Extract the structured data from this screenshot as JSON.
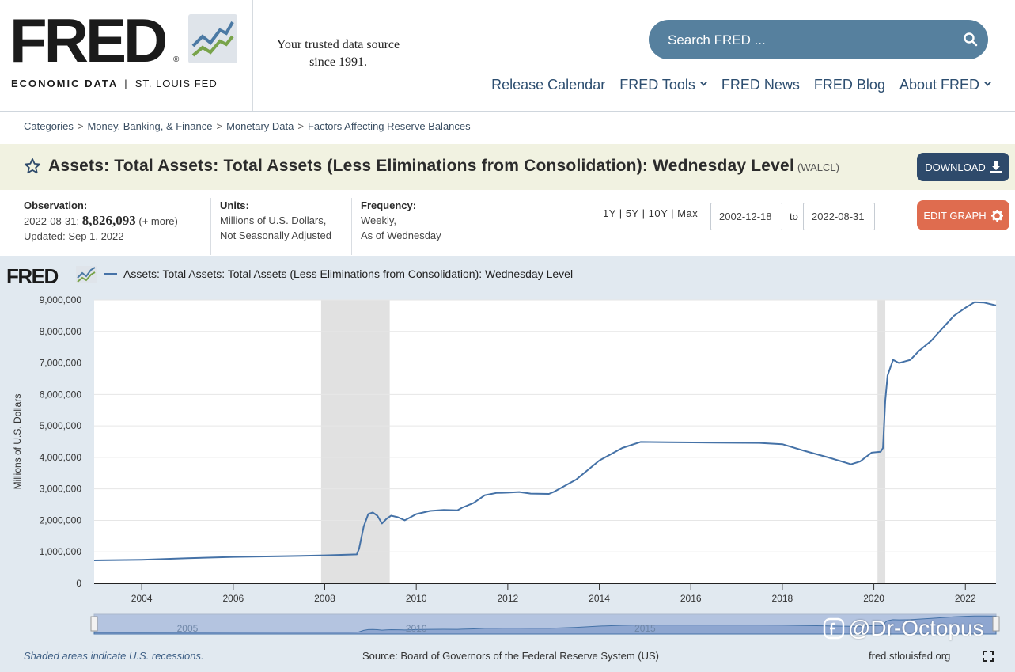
{
  "header": {
    "logo_text": "FRED",
    "logo_reg": "®",
    "logo_sub_left": "ECONOMIC DATA",
    "logo_sub_sep": "|",
    "logo_sub_right": "ST. LOUIS FED",
    "tagline_1": "Your trusted data source",
    "tagline_2": "since 1991.",
    "search_placeholder": "Search FRED ...",
    "nav": {
      "release_calendar": "Release Calendar",
      "fred_tools": "FRED Tools",
      "fred_news": "FRED News",
      "fred_blog": "FRED Blog",
      "about_fred": "About FRED"
    }
  },
  "breadcrumb": {
    "items": [
      "Categories",
      "Money, Banking, & Finance",
      "Monetary Data",
      "Factors Affecting Reserve Balances"
    ],
    "separator": ">"
  },
  "series": {
    "title": "Assets: Total Assets: Total Assets (Less Eliminations from Consolidation): Wednesday Level",
    "id": "(WALCL)",
    "download_label": "DOWNLOAD",
    "edit_label": "EDIT GRAPH"
  },
  "meta": {
    "observation_label": "Observation:",
    "observation_date": "2022-08-31:",
    "observation_value": "8,826,093",
    "observation_more": "(+ more)",
    "updated": "Updated: Sep 1, 2022",
    "units_label": "Units:",
    "units_1": "Millions of U.S. Dollars,",
    "units_2": "Not Seasonally Adjusted",
    "frequency_label": "Frequency:",
    "frequency_1": "Weekly,",
    "frequency_2": "As of Wednesday",
    "ranges": [
      "1Y",
      "5Y",
      "10Y",
      "Max"
    ],
    "range_sep": "|",
    "date_from": "2002-12-18",
    "date_to_label": "to",
    "date_to": "2022-08-31"
  },
  "graph": {
    "logo_text": "FRED",
    "recession_note": "Shaded areas indicate U.S. recessions.",
    "source_note": "Source: Board of Governors of the Federal Reserve System (US)",
    "fred_url": "fred.stlouisfed.org",
    "watermark": "@Dr-Octopus"
  },
  "chart_data": {
    "type": "line",
    "ylabel": "Millions of U.S. Dollars",
    "xlim": [
      2002.96,
      2022.67
    ],
    "ylim": [
      0,
      9000000
    ],
    "yticks": [
      0,
      1000000,
      2000000,
      3000000,
      4000000,
      5000000,
      6000000,
      7000000,
      8000000,
      9000000
    ],
    "ytick_labels": [
      "0",
      "1,000,000",
      "2,000,000",
      "3,000,000",
      "4,000,000",
      "5,000,000",
      "6,000,000",
      "7,000,000",
      "8,000,000",
      "9,000,000"
    ],
    "xticks": [
      2004,
      2006,
      2008,
      2010,
      2012,
      2014,
      2016,
      2018,
      2020,
      2022
    ],
    "xtick_labels": [
      "2004",
      "2006",
      "2008",
      "2010",
      "2012",
      "2014",
      "2016",
      "2018",
      "2020",
      "2022"
    ],
    "navigator_labels": [
      {
        "x": 2005,
        "text": "2005"
      },
      {
        "x": 2010,
        "text": "2010"
      },
      {
        "x": 2015,
        "text": "2015"
      }
    ],
    "recessions": [
      [
        2007.92,
        2009.42
      ],
      [
        2020.08,
        2020.25
      ]
    ],
    "colors": {
      "line": "#4572a7",
      "recession": "#e1e1e1",
      "grid": "#e6e6e6"
    },
    "series": [
      {
        "name": "Assets: Total Assets: Total Assets (Less Eliminations from Consolidation): Wednesday Level",
        "points": [
          [
            2002.96,
            730000
          ],
          [
            2004.0,
            750000
          ],
          [
            2005.0,
            800000
          ],
          [
            2006.0,
            840000
          ],
          [
            2007.0,
            860000
          ],
          [
            2008.0,
            890000
          ],
          [
            2008.5,
            910000
          ],
          [
            2008.7,
            920000
          ],
          [
            2008.75,
            1100000
          ],
          [
            2008.85,
            1800000
          ],
          [
            2008.95,
            2200000
          ],
          [
            2009.05,
            2250000
          ],
          [
            2009.15,
            2150000
          ],
          [
            2009.25,
            1900000
          ],
          [
            2009.35,
            2050000
          ],
          [
            2009.45,
            2150000
          ],
          [
            2009.6,
            2100000
          ],
          [
            2009.75,
            2000000
          ],
          [
            2010.0,
            2200000
          ],
          [
            2010.3,
            2300000
          ],
          [
            2010.6,
            2330000
          ],
          [
            2010.9,
            2320000
          ],
          [
            2011.0,
            2400000
          ],
          [
            2011.25,
            2550000
          ],
          [
            2011.5,
            2800000
          ],
          [
            2011.75,
            2870000
          ],
          [
            2012.0,
            2880000
          ],
          [
            2012.25,
            2900000
          ],
          [
            2012.5,
            2850000
          ],
          [
            2012.9,
            2840000
          ],
          [
            2013.0,
            2900000
          ],
          [
            2013.5,
            3300000
          ],
          [
            2014.0,
            3900000
          ],
          [
            2014.5,
            4300000
          ],
          [
            2014.9,
            4490000
          ],
          [
            2015.5,
            4480000
          ],
          [
            2016.5,
            4470000
          ],
          [
            2017.5,
            4460000
          ],
          [
            2018.0,
            4420000
          ],
          [
            2018.5,
            4200000
          ],
          [
            2019.0,
            4000000
          ],
          [
            2019.5,
            3780000
          ],
          [
            2019.7,
            3870000
          ],
          [
            2019.95,
            4150000
          ],
          [
            2020.15,
            4180000
          ],
          [
            2020.2,
            4300000
          ],
          [
            2020.25,
            5800000
          ],
          [
            2020.3,
            6600000
          ],
          [
            2020.42,
            7100000
          ],
          [
            2020.55,
            7000000
          ],
          [
            2020.8,
            7100000
          ],
          [
            2021.0,
            7400000
          ],
          [
            2021.25,
            7700000
          ],
          [
            2021.5,
            8100000
          ],
          [
            2021.75,
            8500000
          ],
          [
            2022.0,
            8750000
          ],
          [
            2022.2,
            8930000
          ],
          [
            2022.4,
            8920000
          ],
          [
            2022.67,
            8826093
          ]
        ]
      }
    ]
  }
}
